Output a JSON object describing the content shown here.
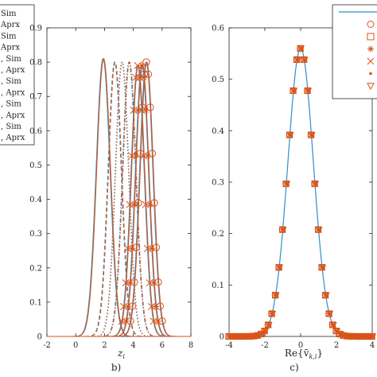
{
  "chart_data": [
    {
      "type": "line",
      "panel": "left-legend",
      "legend_entries": [
        "Sim",
        "Aprx",
        "Sim",
        "Aprx",
        ", Sim",
        ", Aprx",
        ", Sim",
        ", Aprx",
        ", Sim",
        ", Aprx",
        ", Sim",
        ", Aprx"
      ],
      "legend_placement": "left"
    },
    {
      "type": "line",
      "panel_label": "b)",
      "xlabel": "z",
      "xlabel_subscript": "i",
      "xlim": [
        -2,
        8
      ],
      "ylim": [
        0,
        0.9
      ],
      "xticks": [
        "-2",
        "0",
        "2",
        "4",
        "6",
        "8"
      ],
      "yticks": [
        "0",
        "0.1",
        "0.2",
        "0.3",
        "0.4",
        "0.5",
        "0.6",
        "0.7",
        "0.8",
        "0.9"
      ],
      "grid": false,
      "colors": {
        "sim": "#2f8fc9",
        "aprx": "#d95319"
      },
      "series": [
        {
          "mean": 1.9,
          "sd": 0.48,
          "peak": 0.81,
          "style": "solid",
          "marker": "none"
        },
        {
          "mean": 2.7,
          "sd": 0.46,
          "peak": 0.8,
          "style": "dash",
          "marker": "none"
        },
        {
          "mean": 3.2,
          "sd": 0.46,
          "peak": 0.8,
          "style": "dot",
          "marker": "none"
        },
        {
          "mean": 3.7,
          "sd": 0.46,
          "peak": 0.8,
          "style": "dashdot",
          "marker": "none"
        },
        {
          "mean": 4.3,
          "sd": 0.46,
          "peak": 0.79,
          "style": "solid",
          "marker": "x"
        },
        {
          "mean": 4.6,
          "sd": 0.46,
          "peak": 0.79,
          "style": "solid",
          "marker": "*"
        },
        {
          "mean": 4.9,
          "sd": 0.46,
          "peak": 0.8,
          "style": "solid",
          "marker": "o"
        }
      ]
    },
    {
      "type": "line",
      "panel_label": "c)",
      "xlabel": "Re{v̄",
      "xlabel_subscript": "k,i",
      "xlabel_close": "}",
      "xlim": [
        -4,
        4
      ],
      "ylim": [
        0,
        0.6
      ],
      "xticks": [
        "-4",
        "-2",
        "0",
        "2",
        "4"
      ],
      "yticks": [
        "0",
        "0.1",
        "0.2",
        "0.3",
        "0.4",
        "0.5",
        "0.6"
      ],
      "grid": false,
      "legend_placement": "top-right",
      "legend_markers": [
        "line",
        "o",
        "square",
        "*",
        "x",
        "dot",
        "triangle-down"
      ],
      "series": [
        {
          "mean": 0,
          "sd": 0.71,
          "peak": 0.56
        }
      ]
    }
  ]
}
